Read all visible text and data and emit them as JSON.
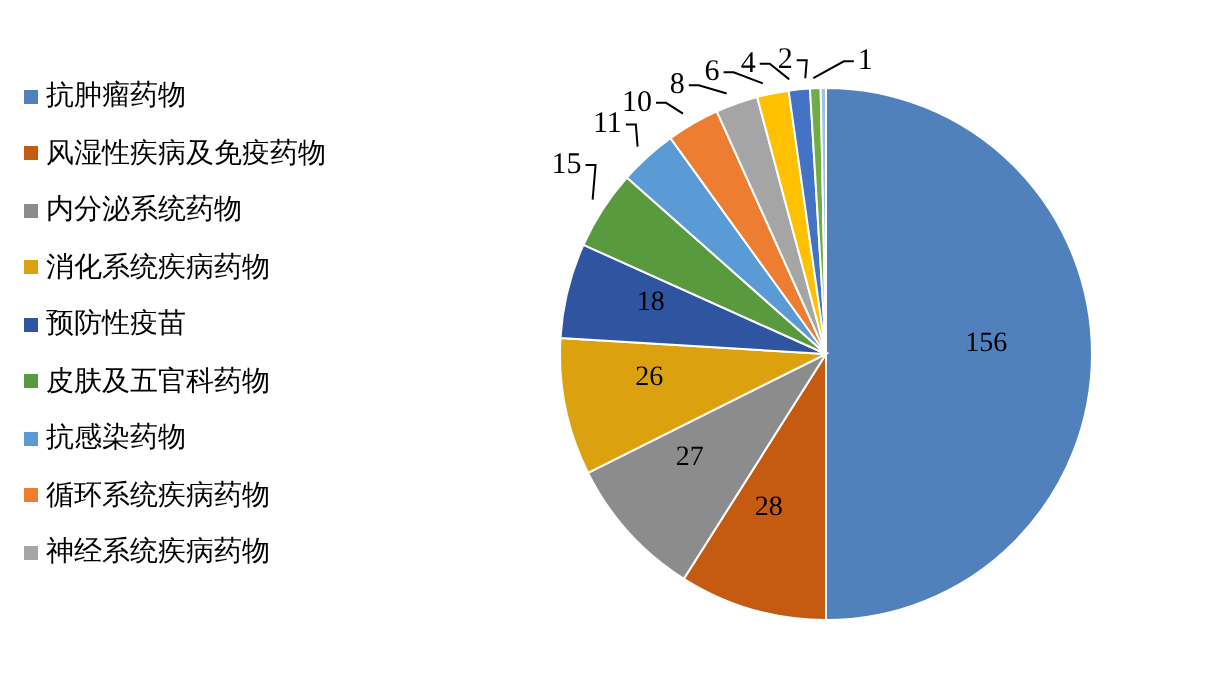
{
  "chart_data": {
    "type": "pie",
    "categories": [
      "抗肿瘤药物",
      "风湿性疾病及免疫药物",
      "内分泌系统药物",
      "消化系统疾病药物",
      "预防性疫苗",
      "皮肤及五官科药物",
      "抗感染药物",
      "循环系统疾病药物",
      "神经系统疾病药物",
      null,
      null,
      null,
      null
    ],
    "values": [
      156,
      28,
      27,
      26,
      18,
      15,
      11,
      10,
      8,
      6,
      4,
      2,
      1
    ],
    "colors": [
      "#5181bd",
      "#c55a11",
      "#8c8c8c",
      "#dca10f",
      "#2f55a0",
      "#5a9a3e",
      "#5b9bd5",
      "#ed7d31",
      "#a5a5a5",
      "#ffc000",
      "#4472c4",
      "#70ad47",
      "#9dc3e6"
    ],
    "data_labels": true,
    "legend": "left"
  }
}
